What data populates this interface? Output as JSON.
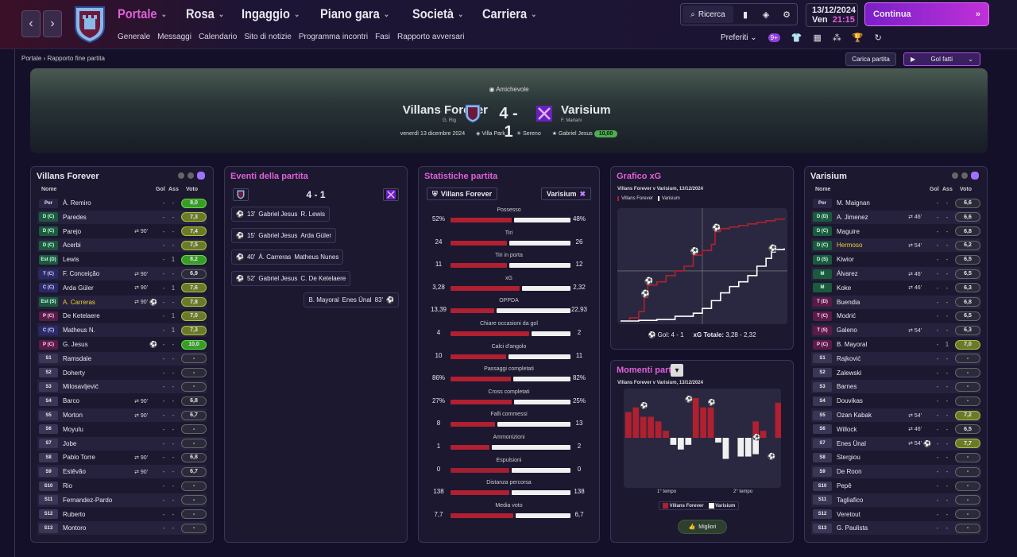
{
  "nav": {
    "back": "‹",
    "forward": "›",
    "menus": [
      {
        "label": "Portale",
        "active": true
      },
      {
        "label": "Rosa"
      },
      {
        "label": "Ingaggio"
      },
      {
        "label": "Piano gara"
      },
      {
        "label": "Società"
      },
      {
        "label": "Carriera"
      }
    ],
    "submenu": [
      "Generale",
      "Messaggi",
      "Calendario",
      "Sito di notizie",
      "Programma incontri",
      "Fasi",
      "Rapporto avversari"
    ],
    "search": "Ricerca",
    "date": "13/12/2024",
    "day": "Ven",
    "time": "21:15",
    "continue": "Continua",
    "favorites": "Preferiti",
    "badge": "9+"
  },
  "breadcrumb": {
    "home": "Portale",
    "current": "Rapporto fine partita"
  },
  "actions": {
    "load": "Carica partita",
    "goals": "Gol fatti"
  },
  "match": {
    "competition": "Amichevole",
    "home": "Villans Forever",
    "home_manager": "G. Rig",
    "score": "4 - 1",
    "away": "Varisium",
    "away_manager": "F. Mariani",
    "date": "venerdì 13 dicembre 2024",
    "stadium": "Villa Park",
    "weather": "Sereno",
    "potm": "Gabriel Jesus",
    "potm_rating": "10,00"
  },
  "home_panel": {
    "title": "Villans Forever",
    "cols": {
      "name": "Nome",
      "gol": "Gol",
      "ass": "Ass",
      "voto": "Voto"
    },
    "rows": [
      {
        "pos": "Por",
        "t": "gk",
        "name": "Á. Remiro",
        "sub": "",
        "sym": "",
        "g": "-",
        "a": "-",
        "v": "8,0",
        "vc": "gg"
      },
      {
        "pos": "D (C)",
        "t": "def",
        "name": "Paredes",
        "sub": "",
        "sym": "",
        "g": "-",
        "a": "-",
        "v": "7,3",
        "vc": "g"
      },
      {
        "pos": "D (C)",
        "t": "def",
        "name": "Parejo",
        "sub": "⇄ 90'",
        "sym": "",
        "g": "-",
        "a": "-",
        "v": "7,4",
        "vc": "g"
      },
      {
        "pos": "D (C)",
        "t": "def",
        "name": "Acerbi",
        "sub": "",
        "sym": "",
        "g": "-",
        "a": "-",
        "v": "7,5",
        "vc": "g"
      },
      {
        "pos": "Est (D)",
        "t": "def",
        "name": "Lewis",
        "sub": "",
        "sym": "",
        "g": "-",
        "a": "1",
        "v": "8,2",
        "vc": "gg"
      },
      {
        "pos": "T (C)",
        "t": "mid",
        "name": "F. Conceição",
        "sub": "⇄ 90'",
        "sym": "",
        "g": "-",
        "a": "-",
        "v": "6,9",
        "vc": ""
      },
      {
        "pos": "C (C)",
        "t": "mid",
        "name": "Arda Güler",
        "sub": "⇄ 90'",
        "sym": "",
        "g": "-",
        "a": "1",
        "v": "7,6",
        "vc": "g"
      },
      {
        "pos": "Est (S)",
        "t": "def",
        "name": "A. Carreras",
        "hl": true,
        "sub": "⇄ 90'",
        "sym": "⚽",
        "g": "-",
        "a": "-",
        "v": "7,8",
        "vc": "g"
      },
      {
        "pos": "P (C)",
        "t": "att",
        "name": "De Ketelaere",
        "sub": "",
        "sym": "",
        "g": "-",
        "a": "1",
        "v": "7,0",
        "vc": "g"
      },
      {
        "pos": "C (C)",
        "t": "mid",
        "name": "Matheus N.",
        "sub": "",
        "sym": "",
        "g": "-",
        "a": "1",
        "v": "7,3",
        "vc": "g"
      },
      {
        "pos": "P (C)",
        "t": "att",
        "name": "G. Jesus",
        "sub": "",
        "sym": "⚽",
        "g": "-",
        "a": "-",
        "v": "10,0",
        "vc": "gg"
      },
      {
        "pos": "S1",
        "t": "sub",
        "name": "Ramsdale",
        "sub": "",
        "sym": "",
        "g": "-",
        "a": "-",
        "v": "-",
        "vc": ""
      },
      {
        "pos": "S2",
        "t": "sub",
        "name": "Doherty",
        "sub": "",
        "sym": "",
        "g": "-",
        "a": "-",
        "v": "-",
        "vc": ""
      },
      {
        "pos": "S3",
        "t": "sub",
        "name": "Milosavljević",
        "sub": "",
        "sym": "",
        "g": "-",
        "a": "-",
        "v": "-",
        "vc": ""
      },
      {
        "pos": "S4",
        "t": "sub",
        "name": "Barco",
        "sub": "⇄ 90'",
        "sym": "",
        "g": "-",
        "a": "-",
        "v": "6,8",
        "vc": ""
      },
      {
        "pos": "S5",
        "t": "sub",
        "name": "Morton",
        "sub": "⇄ 90'",
        "sym": "",
        "g": "-",
        "a": "-",
        "v": "6,7",
        "vc": ""
      },
      {
        "pos": "S6",
        "t": "sub",
        "name": "Moyulu",
        "sub": "",
        "sym": "",
        "g": "-",
        "a": "-",
        "v": "-",
        "vc": ""
      },
      {
        "pos": "S7",
        "t": "sub",
        "name": "Jobe",
        "sub": "",
        "sym": "",
        "g": "-",
        "a": "-",
        "v": "-",
        "vc": ""
      },
      {
        "pos": "S8",
        "t": "sub",
        "name": "Pablo Torre",
        "sub": "⇄ 90'",
        "sym": "",
        "g": "-",
        "a": "-",
        "v": "6,8",
        "vc": ""
      },
      {
        "pos": "S9",
        "t": "sub",
        "name": "Estêvão",
        "sub": "⇄ 90'",
        "sym": "",
        "g": "-",
        "a": "-",
        "v": "6,7",
        "vc": ""
      },
      {
        "pos": "S10",
        "t": "sub",
        "name": "Rio",
        "sub": "",
        "sym": "",
        "g": "-",
        "a": "-",
        "v": "-",
        "vc": ""
      },
      {
        "pos": "S11",
        "t": "sub",
        "name": "Fernandez-Pardo",
        "sub": "",
        "sym": "",
        "g": "-",
        "a": "-",
        "v": "-",
        "vc": ""
      },
      {
        "pos": "S12",
        "t": "sub",
        "name": "Ruberto",
        "sub": "",
        "sym": "",
        "g": "-",
        "a": "-",
        "v": "-",
        "vc": ""
      },
      {
        "pos": "S13",
        "t": "sub",
        "name": "Montoro",
        "sub": "",
        "sym": "",
        "g": "-",
        "a": "-",
        "v": "-",
        "vc": ""
      }
    ]
  },
  "away_panel": {
    "title": "Varisium",
    "cols": {
      "name": "Nome",
      "gol": "Gol",
      "ass": "Ass",
      "voto": "Voto"
    },
    "rows": [
      {
        "pos": "Por",
        "t": "gk",
        "name": "M. Maignan",
        "sub": "",
        "sym": "",
        "g": "-",
        "a": "-",
        "v": "6,6",
        "vc": ""
      },
      {
        "pos": "D (D)",
        "t": "def",
        "name": "A. Jimenez",
        "sub": "⇄ 46'",
        "sym": "",
        "g": "-",
        "a": "-",
        "v": "6,6",
        "vc": ""
      },
      {
        "pos": "D (C)",
        "t": "def",
        "name": "Maguire",
        "sub": "",
        "sym": "",
        "g": "-",
        "a": "-",
        "v": "6,8",
        "vc": ""
      },
      {
        "pos": "D (C)",
        "t": "def",
        "name": "Hermoso",
        "hl": true,
        "sub": "⇄ 54'",
        "sym": "",
        "g": "-",
        "a": "-",
        "v": "6,2",
        "vc": ""
      },
      {
        "pos": "D (S)",
        "t": "def",
        "name": "Kiwior",
        "sub": "",
        "sym": "",
        "g": "-",
        "a": "-",
        "v": "6,5",
        "vc": ""
      },
      {
        "pos": "M",
        "t": "def",
        "name": "Álvarez",
        "sub": "⇄ 46'",
        "sym": "",
        "g": "-",
        "a": "-",
        "v": "6,5",
        "vc": ""
      },
      {
        "pos": "M",
        "t": "def",
        "name": "Koke",
        "sub": "⇄ 46'",
        "sym": "",
        "g": "-",
        "a": "-",
        "v": "6,3",
        "vc": ""
      },
      {
        "pos": "T (D)",
        "t": "att",
        "name": "Buendia",
        "sub": "",
        "sym": "",
        "g": "-",
        "a": "-",
        "v": "6,8",
        "vc": ""
      },
      {
        "pos": "T (C)",
        "t": "att",
        "name": "Modrić",
        "sub": "",
        "sym": "",
        "g": "-",
        "a": "-",
        "v": "6,5",
        "vc": ""
      },
      {
        "pos": "T (S)",
        "t": "att",
        "name": "Galeno",
        "sub": "⇄ 54'",
        "sym": "",
        "g": "-",
        "a": "-",
        "v": "6,3",
        "vc": ""
      },
      {
        "pos": "P (C)",
        "t": "att",
        "name": "B. Mayoral",
        "sub": "",
        "sym": "",
        "g": "-",
        "a": "1",
        "v": "7,0",
        "vc": "g"
      },
      {
        "pos": "S1",
        "t": "sub",
        "name": "Rajković",
        "sub": "",
        "sym": "",
        "g": "-",
        "a": "-",
        "v": "-",
        "vc": ""
      },
      {
        "pos": "S2",
        "t": "sub",
        "name": "Zalewski",
        "sub": "",
        "sym": "",
        "g": "-",
        "a": "-",
        "v": "-",
        "vc": ""
      },
      {
        "pos": "S3",
        "t": "sub",
        "name": "Barnes",
        "sub": "",
        "sym": "",
        "g": "-",
        "a": "-",
        "v": "-",
        "vc": ""
      },
      {
        "pos": "S4",
        "t": "sub",
        "name": "Douvikas",
        "sub": "",
        "sym": "",
        "g": "-",
        "a": "-",
        "v": "-",
        "vc": ""
      },
      {
        "pos": "S5",
        "t": "sub",
        "name": "Ozan Kabak",
        "sub": "⇄ 54'",
        "sym": "",
        "g": "-",
        "a": "-",
        "v": "7,2",
        "vc": "g"
      },
      {
        "pos": "S6",
        "t": "sub",
        "name": "Willock",
        "sub": "⇄ 46'",
        "sym": "",
        "g": "-",
        "a": "-",
        "v": "6,5",
        "vc": ""
      },
      {
        "pos": "S7",
        "t": "sub",
        "name": "Enes Ünal",
        "sub": "⇄ 54'",
        "sym": "⚽",
        "g": "-",
        "a": "-",
        "v": "7,7",
        "vc": "g"
      },
      {
        "pos": "S8",
        "t": "sub",
        "name": "Stergiou",
        "sub": "",
        "sym": "",
        "g": "-",
        "a": "-",
        "v": "-",
        "vc": ""
      },
      {
        "pos": "S9",
        "t": "sub",
        "name": "De Roon",
        "sub": "",
        "sym": "",
        "g": "-",
        "a": "-",
        "v": "-",
        "vc": ""
      },
      {
        "pos": "S10",
        "t": "sub",
        "name": "Pepê",
        "sub": "",
        "sym": "",
        "g": "-",
        "a": "-",
        "v": "-",
        "vc": ""
      },
      {
        "pos": "S11",
        "t": "sub",
        "name": "Tagliafico",
        "sub": "",
        "sym": "",
        "g": "-",
        "a": "-",
        "v": "-",
        "vc": ""
      },
      {
        "pos": "S12",
        "t": "sub",
        "name": "Veretout",
        "sub": "",
        "sym": "",
        "g": "-",
        "a": "-",
        "v": "-",
        "vc": ""
      },
      {
        "pos": "S13",
        "t": "sub",
        "name": "G. Paulista",
        "sub": "",
        "sym": "",
        "g": "-",
        "a": "-",
        "v": "-",
        "vc": ""
      }
    ]
  },
  "events": {
    "title": "Eventi della partita",
    "score": "4 - 1",
    "items": [
      {
        "min": "13'",
        "scorer": "Gabriel Jesus",
        "assist": "R. Lewis",
        "side": "home"
      },
      {
        "min": "15'",
        "scorer": "Gabriel Jesus",
        "assist": "Arda Güler",
        "side": "home"
      },
      {
        "min": "40'",
        "scorer": "Á. Carreras",
        "assist": "Matheus Nunes",
        "side": "home"
      },
      {
        "min": "52'",
        "scorer": "Gabriel Jesus",
        "assist": "C. De Ketelaere",
        "side": "home"
      },
      {
        "min": "83'",
        "scorer": "Enes Ünal",
        "assist": "B. Mayoral",
        "side": "away"
      }
    ]
  },
  "stats": {
    "title": "Statistiche partita",
    "home": "Villans Forever",
    "away": "Varisium",
    "items": [
      {
        "label": "Possesso",
        "h": "52%",
        "a": "48%",
        "hv": 52,
        "av": 48
      },
      {
        "label": "Tiri",
        "h": "24",
        "a": "26",
        "hv": 24,
        "av": 26
      },
      {
        "label": "Tiri in porta",
        "h": "11",
        "a": "12",
        "hv": 11,
        "av": 12
      },
      {
        "label": "xG",
        "h": "3,28",
        "a": "2,32",
        "hv": 3.28,
        "av": 2.32
      },
      {
        "label": "OPPDA",
        "h": "13,39",
        "a": "22,93",
        "hv": 13.39,
        "av": 22.93
      },
      {
        "label": "Chiare occasioni da gol",
        "h": "4",
        "a": "2",
        "hv": 4,
        "av": 2
      },
      {
        "label": "Calci d'angolo",
        "h": "10",
        "a": "11",
        "hv": 10,
        "av": 11
      },
      {
        "label": "Passaggi completati",
        "h": "86%",
        "a": "82%",
        "hv": 86,
        "av": 82
      },
      {
        "label": "Cross completati",
        "h": "27%",
        "a": "25%",
        "hv": 27,
        "av": 25
      },
      {
        "label": "Falli commessi",
        "h": "8",
        "a": "13",
        "hv": 8,
        "av": 13
      },
      {
        "label": "Ammonizioni",
        "h": "1",
        "a": "2",
        "hv": 1,
        "av": 2
      },
      {
        "label": "Espulsioni",
        "h": "0",
        "a": "0",
        "hv": 0,
        "av": 0
      },
      {
        "label": "Distanza percorsa",
        "h": "138",
        "a": "138",
        "hv": 138,
        "av": 138
      },
      {
        "label": "Media voto",
        "h": "7,7",
        "a": "6,7",
        "hv": 7.7,
        "av": 6.7
      }
    ]
  },
  "xg": {
    "title": "Grafico xG",
    "subtitle": "Villans Forever v Varisium, 13/12/2024",
    "legend_home": "Villans Forever",
    "legend_away": "Varisium",
    "goals": "Gol: 4 - 1",
    "xg_total_label": "xG Totale:",
    "xg_total": "3,28 - 2,32"
  },
  "moments": {
    "title": "Momenti partita",
    "subtitle": "Villans Forever v Varisium, 13/12/2024",
    "half1": "1° tempo",
    "half2": "2° tempo",
    "legend_home": "Villans Forever",
    "legend_away": "Varisium",
    "best": "Migliori"
  },
  "chart_data": [
    {
      "type": "line",
      "title": "Grafico xG",
      "series": [
        {
          "name": "Villans Forever",
          "color": "#b02030",
          "x": [
            0,
            5,
            10,
            13,
            15,
            20,
            25,
            30,
            35,
            40,
            45,
            50,
            52,
            55,
            60,
            65,
            70,
            75,
            80,
            85,
            90
          ],
          "y": [
            0,
            0.1,
            0.3,
            0.75,
            1.15,
            1.25,
            1.45,
            1.6,
            1.75,
            2.1,
            2.25,
            2.45,
            2.85,
            2.95,
            3.0,
            3.05,
            3.1,
            3.15,
            3.2,
            3.25,
            3.28
          ]
        },
        {
          "name": "Varisium",
          "color": "#ffffff",
          "x": [
            0,
            10,
            20,
            30,
            40,
            45,
            50,
            55,
            60,
            65,
            70,
            75,
            80,
            83,
            85,
            90
          ],
          "y": [
            0,
            0.02,
            0.05,
            0.15,
            0.25,
            0.4,
            0.65,
            0.9,
            1.1,
            1.25,
            1.45,
            1.75,
            2.0,
            2.2,
            2.28,
            2.32
          ]
        }
      ]
    },
    {
      "type": "bar",
      "title": "Momenti partita",
      "series": [
        {
          "name": "Villans Forever",
          "values": [
            0.55,
            0.65,
            0.45,
            0.45,
            0.35,
            0.15,
            0,
            0,
            0,
            0.85,
            0.65,
            0.65,
            0,
            0,
            0,
            0,
            0,
            0.35,
            0.15,
            0,
            0.75
          ]
        },
        {
          "name": "Varisium",
          "values": [
            0,
            0,
            0,
            0,
            0,
            0,
            0.15,
            0.25,
            0.15,
            0,
            0,
            0,
            0.1,
            0.45,
            0,
            0.4,
            0.4,
            0.35,
            0,
            0,
            0
          ]
        }
      ]
    }
  ]
}
